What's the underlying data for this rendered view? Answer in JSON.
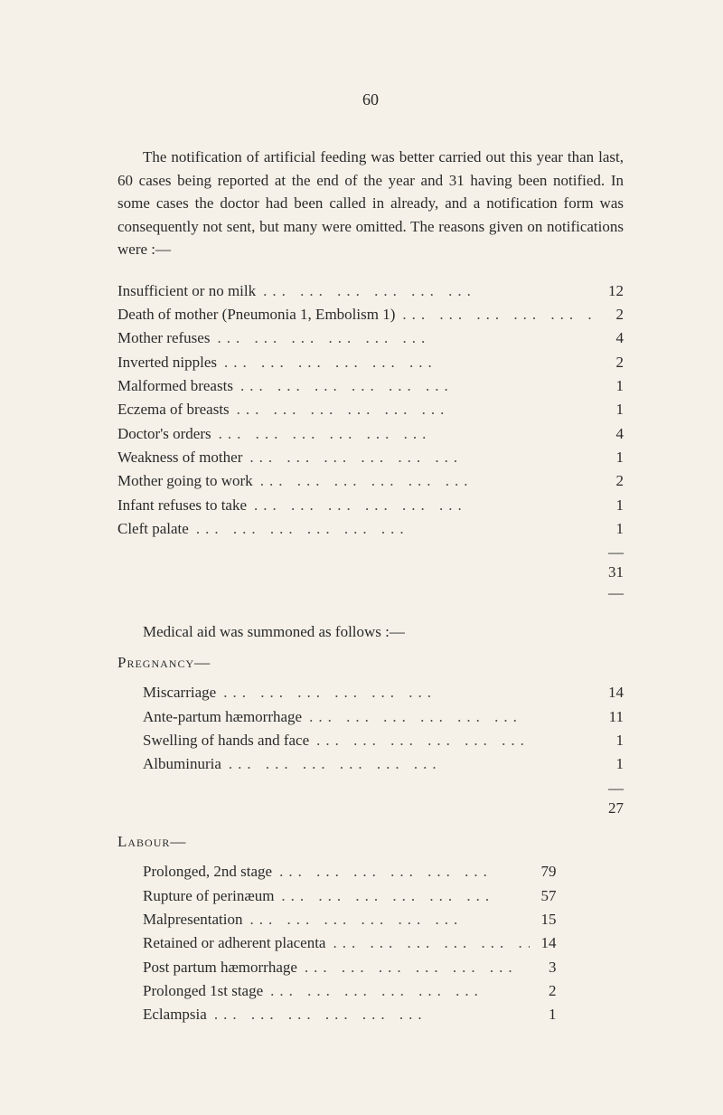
{
  "pageNumber": "60",
  "introParagraph": "The notification of artificial feeding was better carried out this year than last, 60 cases being reported at the end of the year and 31 having been notified. In some cases the doctor had been called in already, and a notification form was conse­quently not sent, but many were omitted. The reasons given on notifications were :—",
  "reasons": {
    "items": [
      {
        "label": "Insufficient or no milk",
        "value": "12"
      },
      {
        "label": "Death of mother (Pneumonia 1, Embolism 1)",
        "value": "2"
      },
      {
        "label": "Mother refuses",
        "value": "4"
      },
      {
        "label": "Inverted nipples",
        "value": "2"
      },
      {
        "label": "Malformed breasts",
        "value": "1"
      },
      {
        "label": "Eczema of breasts",
        "value": "1"
      },
      {
        "label": "Doctor's orders",
        "value": "4"
      },
      {
        "label": "Weakness of mother",
        "value": "1"
      },
      {
        "label": "Mother going to work",
        "value": "2"
      },
      {
        "label": "Infant refuses to take",
        "value": "1"
      },
      {
        "label": "Cleft palate",
        "value": "1"
      }
    ],
    "total": "31"
  },
  "medicalAidHeading": "Medical aid was summoned as follows :—",
  "pregnancy": {
    "title": "Pregnancy—",
    "items": [
      {
        "label": "Miscarriage",
        "value": "14"
      },
      {
        "label": "Ante-partum hæmorrhage",
        "value": "11"
      },
      {
        "label": "Swelling of hands and face",
        "value": "1"
      },
      {
        "label": "Albuminuria",
        "value": "1"
      }
    ],
    "total": "27"
  },
  "labour": {
    "title": "Labour—",
    "items": [
      {
        "label": "Prolonged, 2nd stage",
        "value": "79"
      },
      {
        "label": "Rupture of perinæum",
        "value": "57"
      },
      {
        "label": "Malpresentation",
        "value": "15"
      },
      {
        "label": "Retained or adherent placenta",
        "value": "14"
      },
      {
        "label": "Post partum hæmorrhage",
        "value": "3"
      },
      {
        "label": "Prolonged 1st stage",
        "value": "2"
      },
      {
        "label": "Eclampsia",
        "value": "1"
      }
    ]
  },
  "dotsFill": "...  ...  ...  ...  ...  ...",
  "rule": "—"
}
